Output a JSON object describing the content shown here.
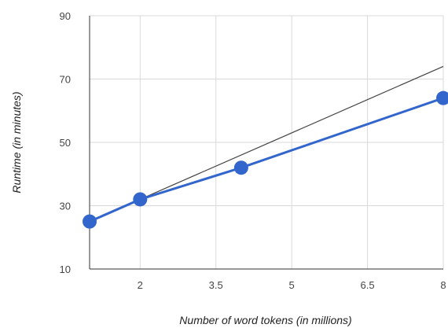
{
  "chart_data": {
    "type": "line",
    "xlabel": "Number of word tokens (in millions)",
    "ylabel": "Runtime (in minutes)",
    "xlim": [
      1,
      8
    ],
    "ylim": [
      10,
      90
    ],
    "x_ticks": [
      {
        "value": 2,
        "label": "2"
      },
      {
        "value": 3.5,
        "label": "3.5"
      },
      {
        "value": 5,
        "label": "5"
      },
      {
        "value": 6.5,
        "label": "6.5"
      },
      {
        "value": 8,
        "label": "8"
      }
    ],
    "y_ticks": [
      {
        "value": 10,
        "label": "10"
      },
      {
        "value": 30,
        "label": "30"
      },
      {
        "value": 50,
        "label": "50"
      },
      {
        "value": 70,
        "label": "70"
      },
      {
        "value": 90,
        "label": "90"
      }
    ],
    "grid": true,
    "legend": "none",
    "series": [
      {
        "role": "measured",
        "color": "#3366cc",
        "markers": true,
        "points": [
          {
            "x": 1,
            "y": 25
          },
          {
            "x": 2,
            "y": 32
          },
          {
            "x": 4,
            "y": 42
          },
          {
            "x": 8,
            "y": 64
          }
        ]
      },
      {
        "role": "linear-reference",
        "color": "#444444",
        "markers": false,
        "points": [
          {
            "x": 1,
            "y": 25
          },
          {
            "x": 8,
            "y": 74
          }
        ]
      }
    ]
  }
}
